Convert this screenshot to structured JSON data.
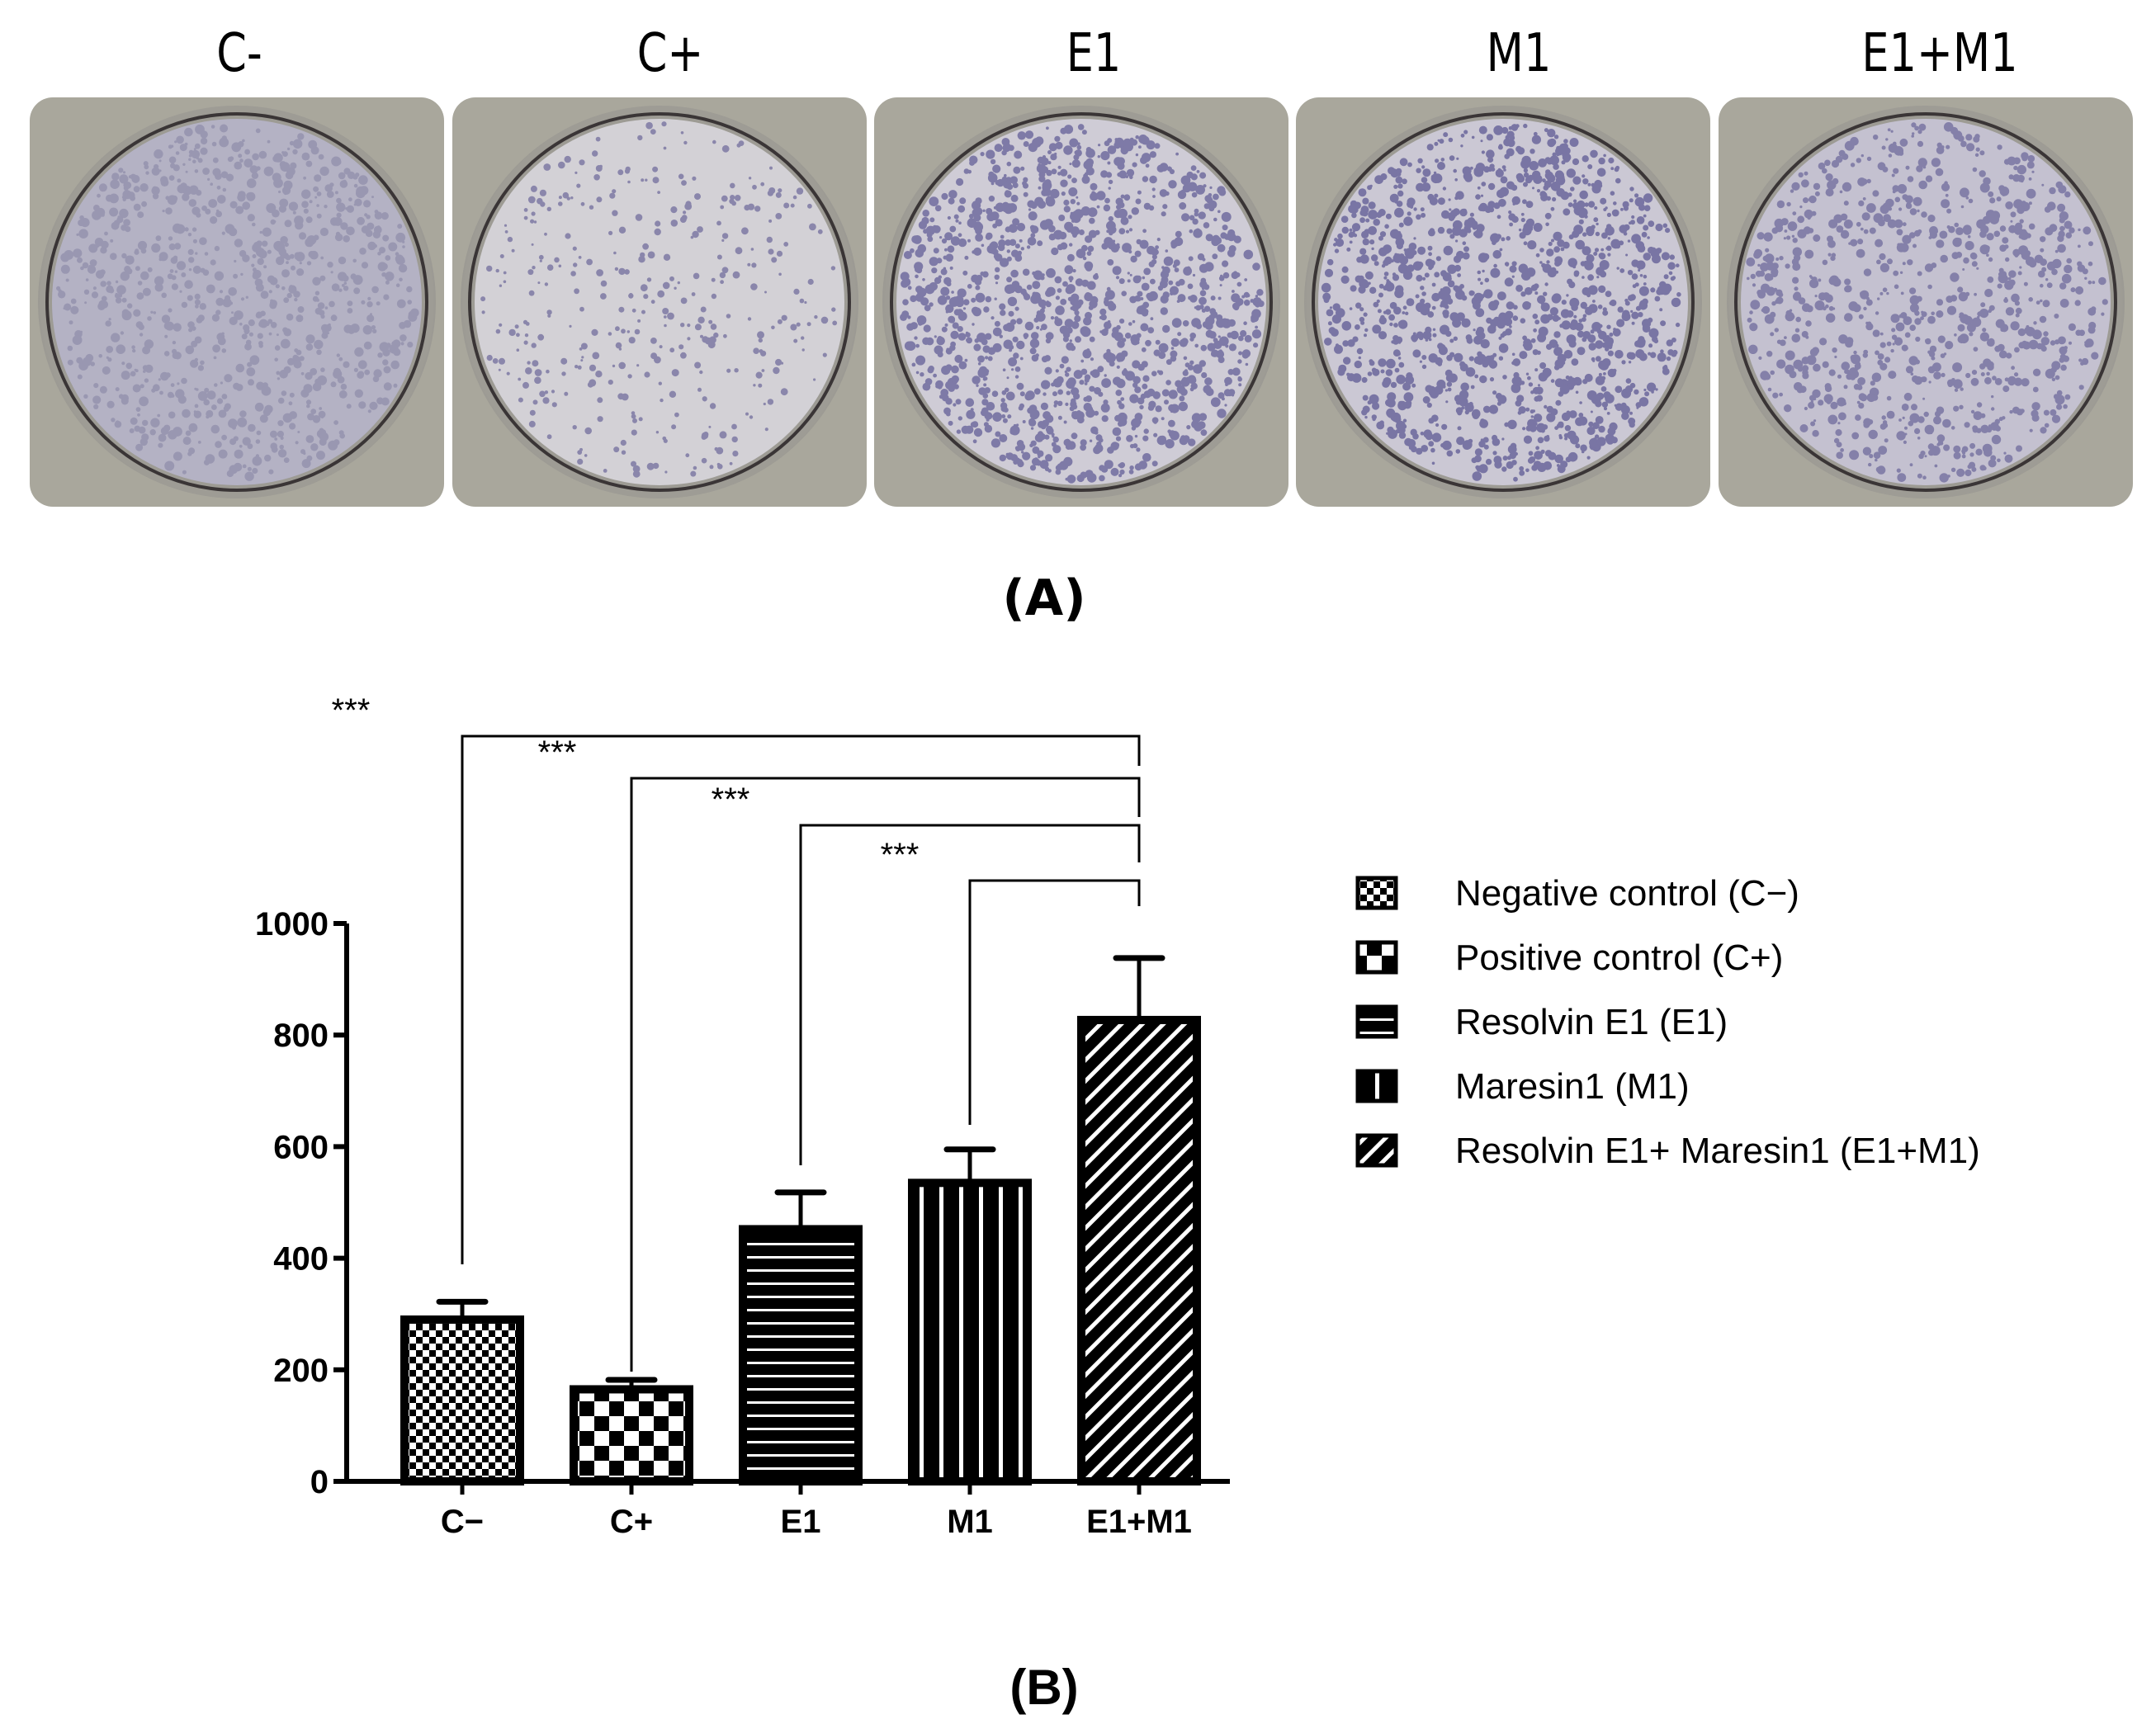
{
  "panel_a": {
    "letter": "(A)",
    "wells": [
      {
        "label": "C-",
        "stain_density": "uniform-light",
        "dish_color": "#b4b2c4",
        "dot_color": "#6a6690"
      },
      {
        "label": "C+",
        "stain_density": "sparse",
        "dish_color": "#d3d1d6",
        "dot_color": "#5a5590"
      },
      {
        "label": "E1",
        "stain_density": "dense",
        "dish_color": "#cfccd6",
        "dot_color": "#4a4488"
      },
      {
        "label": "M1",
        "stain_density": "dense",
        "dish_color": "#cbc8d4",
        "dot_color": "#443f85"
      },
      {
        "label": "E1+M1",
        "stain_density": "medium",
        "dish_color": "#c4c1d0",
        "dot_color": "#5a5590"
      }
    ]
  },
  "panel_b": {
    "letter": "(B)",
    "significance": [
      {
        "from": "C−",
        "to": "E1+M1",
        "label": "***"
      },
      {
        "from": "C+",
        "to": "E1+M1",
        "label": "***"
      },
      {
        "from": "E1",
        "to": "E1+M1",
        "label": "***"
      },
      {
        "from": "M1",
        "to": "E1+M1",
        "label": "***"
      }
    ],
    "legend": [
      {
        "pattern": "fine-checker",
        "label": "Negative control (C−)"
      },
      {
        "pattern": "coarse-checker",
        "label": "Positive control (C+)"
      },
      {
        "pattern": "horizontal-lines",
        "label": "Resolvin E1 (E1)"
      },
      {
        "pattern": "vertical-lines",
        "label": "Maresin1 (M1)"
      },
      {
        "pattern": "diagonal-hatch",
        "label": "Resolvin E1+ Maresin1 (E1+M1)"
      }
    ]
  },
  "chart_data": {
    "type": "bar",
    "title": "",
    "xlabel": "",
    "ylabel": "",
    "categories": [
      "C−",
      "C+",
      "E1",
      "M1",
      "E1+M1"
    ],
    "values": [
      290,
      165,
      452,
      535,
      827
    ],
    "error_upper": [
      322,
      182,
      518,
      595,
      938
    ],
    "yticks": [
      0,
      200,
      400,
      600,
      800,
      1000
    ],
    "ylim": [
      0,
      1000
    ],
    "grid": false,
    "legend_position": "right",
    "patterns": [
      "fine-checker",
      "coarse-checker",
      "horizontal-lines",
      "vertical-lines",
      "diagonal-hatch"
    ],
    "annotations": [
      {
        "pair": [
          "C−",
          "E1+M1"
        ],
        "text": "***"
      },
      {
        "pair": [
          "C+",
          "E1+M1"
        ],
        "text": "***"
      },
      {
        "pair": [
          "E1",
          "E1+M1"
        ],
        "text": "***"
      },
      {
        "pair": [
          "M1",
          "E1+M1"
        ],
        "text": "***"
      }
    ]
  }
}
